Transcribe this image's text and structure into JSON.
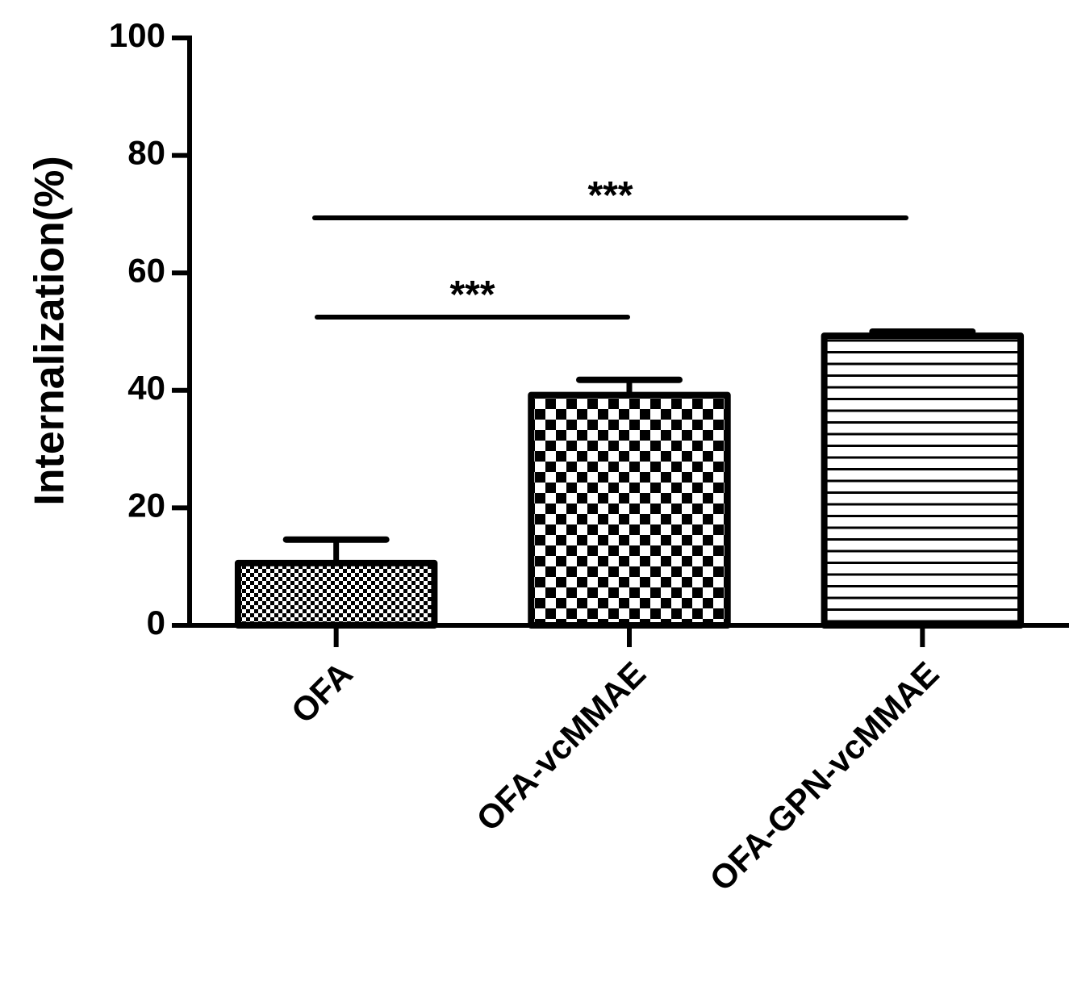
{
  "chart_data": {
    "type": "bar",
    "y_label": "Internalization(%)",
    "categories": [
      "OFA",
      "OFA-vcMMAE",
      "OFA-GPN-vcMMAE"
    ],
    "values": [
      10.6,
      39.2,
      49.3
    ],
    "errors": [
      4.0,
      2.6,
      0.7
    ],
    "color": "#000000",
    "ylim": [
      0,
      100
    ],
    "yticks": [
      0,
      20,
      40,
      60,
      80,
      100
    ],
    "annotations": [
      "***",
      "***"
    ]
  }
}
